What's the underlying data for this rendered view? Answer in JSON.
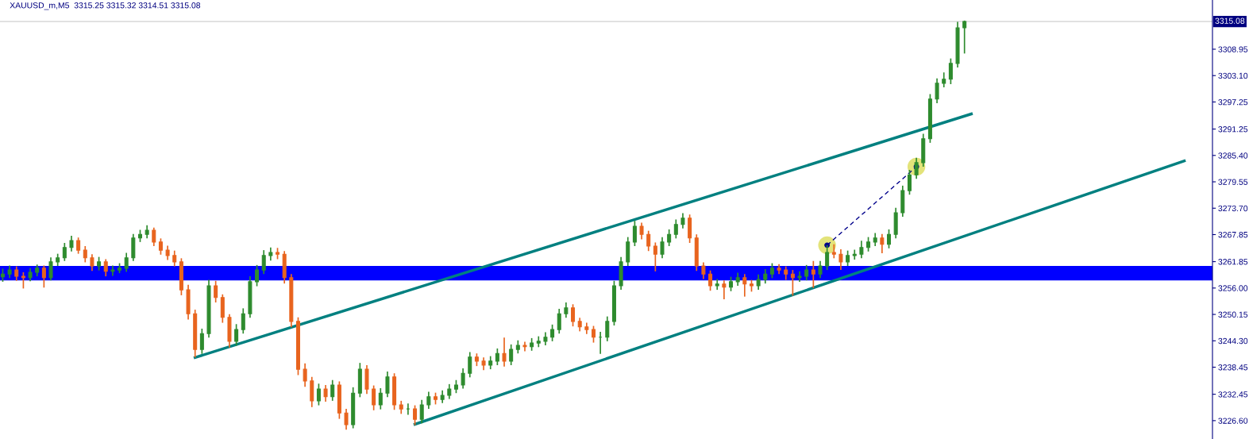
{
  "chart_data": {
    "type": "candlestick",
    "title": "XAUUSD_m,M5  3315.25 3315.32 3314.51 3315.08",
    "categories": [
      null,
      null,
      null,
      null,
      null,
      null,
      null,
      null,
      null,
      null,
      null,
      null,
      null,
      null,
      null,
      null,
      null,
      null,
      null,
      null,
      null,
      null,
      null,
      null,
      null,
      null,
      null,
      null,
      null,
      null,
      null,
      null,
      null,
      null,
      null,
      null,
      null,
      null,
      null,
      null,
      null,
      null,
      null,
      null,
      null,
      null,
      null,
      null,
      null,
      null,
      null,
      null,
      null,
      null,
      null,
      null,
      null,
      null,
      null,
      null,
      null,
      null,
      null,
      null,
      null,
      null,
      null,
      null,
      null,
      null,
      null,
      null,
      null,
      null,
      null,
      null,
      null,
      null,
      null,
      null,
      null,
      null,
      null,
      null,
      null,
      null,
      null,
      null,
      null,
      null,
      null,
      null,
      null,
      null,
      null,
      null,
      null,
      null,
      null,
      null,
      null,
      null,
      null,
      null,
      null,
      null,
      null,
      null,
      null,
      null,
      null,
      null,
      null,
      null,
      null,
      null,
      null,
      null,
      null,
      null,
      null,
      null,
      null,
      null,
      null,
      null,
      null,
      null,
      null,
      null,
      null,
      null,
      null,
      null,
      null,
      null,
      null,
      null,
      null,
      null,
      null,
      null,
      null,
      null,
      null,
      null,
      null,
      null,
      null,
      null,
      null,
      null,
      null,
      null,
      null,
      null,
      null,
      null,
      null,
      null,
      null,
      null,
      null,
      null,
      null,
      null,
      null,
      null,
      null,
      null,
      null,
      null,
      null,
      null,
      null,
      null,
      null
    ],
    "ohlc": [
      [
        3258.5,
        3260.3,
        3257.4,
        3259.1
      ],
      [
        3259.1,
        3261.0,
        3258.2,
        3260.0
      ],
      [
        3260.0,
        3260.8,
        3257.6,
        3258.6
      ],
      [
        3258.6,
        3259.5,
        3255.9,
        3258.3
      ],
      [
        3258.3,
        3260.4,
        3257.5,
        3259.5
      ],
      [
        3259.5,
        3261.2,
        3258.6,
        3260.4
      ],
      [
        3260.4,
        3261.0,
        3256.1,
        3258.3
      ],
      [
        3258.3,
        3262.8,
        3257.7,
        3261.8
      ],
      [
        3261.8,
        3263.6,
        3260.9,
        3262.7
      ],
      [
        3262.7,
        3266.0,
        3262.0,
        3265.0
      ],
      [
        3265.0,
        3267.6,
        3264.1,
        3266.5
      ],
      [
        3266.5,
        3267.2,
        3263.6,
        3264.4
      ],
      [
        3264.4,
        3265.3,
        3261.7,
        3262.7
      ],
      [
        3262.7,
        3263.5,
        3259.8,
        3260.9
      ],
      [
        3260.9,
        3262.9,
        3259.9,
        3261.8
      ],
      [
        3261.8,
        3262.4,
        3258.6,
        3259.7
      ],
      [
        3259.7,
        3261.0,
        3258.7,
        3260.0
      ],
      [
        3260.0,
        3261.5,
        3259.3,
        3260.4
      ],
      [
        3260.4,
        3263.8,
        3259.6,
        3262.7
      ],
      [
        3262.7,
        3268.0,
        3262.0,
        3267.1
      ],
      [
        3267.1,
        3268.9,
        3266.2,
        3267.9
      ],
      [
        3267.9,
        3269.9,
        3267.0,
        3268.8
      ],
      [
        3268.8,
        3269.4,
        3265.3,
        3266.2
      ],
      [
        3266.2,
        3267.0,
        3263.4,
        3264.4
      ],
      [
        3264.4,
        3265.4,
        3262.2,
        3263.2
      ],
      [
        3263.2,
        3264.3,
        3260.8,
        3261.8
      ],
      [
        3261.8,
        3262.6,
        3254.4,
        3255.6
      ],
      [
        3255.6,
        3256.7,
        3249.0,
        3250.3
      ],
      [
        3250.3,
        3251.2,
        3240.6,
        3242.4
      ],
      [
        3242.4,
        3247.0,
        3241.4,
        3245.9
      ],
      [
        3245.9,
        3257.8,
        3245.0,
        3256.5
      ],
      [
        3256.5,
        3257.6,
        3252.8,
        3253.9
      ],
      [
        3253.9,
        3254.6,
        3248.3,
        3249.5
      ],
      [
        3249.5,
        3250.2,
        3242.8,
        3244.2
      ],
      [
        3244.2,
        3248.0,
        3243.2,
        3246.8
      ],
      [
        3246.8,
        3251.5,
        3245.9,
        3250.3
      ],
      [
        3250.3,
        3258.6,
        3249.4,
        3257.4
      ],
      [
        3257.4,
        3261.1,
        3256.4,
        3260.0
      ],
      [
        3260.0,
        3264.4,
        3259.1,
        3263.2
      ],
      [
        3263.2,
        3265.0,
        3262.1,
        3263.9
      ],
      [
        3263.9,
        3264.9,
        3262.4,
        3263.5
      ],
      [
        3263.5,
        3264.2,
        3257.0,
        3258.3
      ],
      [
        3258.3,
        3259.1,
        3247.3,
        3248.6
      ],
      [
        3248.6,
        3249.5,
        3236.7,
        3238.0
      ],
      [
        3238.0,
        3239.3,
        3234.1,
        3235.4
      ],
      [
        3235.4,
        3236.3,
        3229.6,
        3231.0
      ],
      [
        3231.0,
        3234.8,
        3230.0,
        3233.6
      ],
      [
        3233.6,
        3234.5,
        3230.8,
        3231.9
      ],
      [
        3231.9,
        3235.6,
        3231.0,
        3234.5
      ],
      [
        3234.5,
        3235.3,
        3227.0,
        3228.3
      ],
      [
        3228.3,
        3229.2,
        3224.6,
        3225.7
      ],
      [
        3225.7,
        3234.0,
        3224.9,
        3232.7
      ],
      [
        3232.7,
        3239.4,
        3231.8,
        3238.0
      ],
      [
        3238.0,
        3238.9,
        3232.5,
        3233.6
      ],
      [
        3233.6,
        3234.4,
        3228.9,
        3230.1
      ],
      [
        3230.1,
        3233.8,
        3229.1,
        3232.7
      ],
      [
        3232.7,
        3237.5,
        3231.8,
        3236.3
      ],
      [
        3236.3,
        3237.1,
        3229.0,
        3230.1
      ],
      [
        3230.1,
        3231.0,
        3228.1,
        3229.2
      ],
      [
        3229.2,
        3230.4,
        3227.9,
        3229.2
      ],
      [
        3229.2,
        3230.0,
        3225.6,
        3226.9
      ],
      [
        3226.9,
        3231.2,
        3226.0,
        3230.1
      ],
      [
        3230.1,
        3233.0,
        3229.2,
        3231.9
      ],
      [
        3231.9,
        3232.8,
        3230.2,
        3231.3
      ],
      [
        3231.3,
        3233.3,
        3230.5,
        3232.2
      ],
      [
        3232.2,
        3234.7,
        3231.4,
        3233.6
      ],
      [
        3233.6,
        3235.6,
        3232.7,
        3234.5
      ],
      [
        3234.5,
        3238.2,
        3233.7,
        3237.1
      ],
      [
        3237.1,
        3241.8,
        3236.2,
        3240.7
      ],
      [
        3240.7,
        3241.5,
        3238.7,
        3239.8
      ],
      [
        3239.8,
        3240.6,
        3237.8,
        3238.9
      ],
      [
        3238.9,
        3240.9,
        3238.0,
        3239.8
      ],
      [
        3239.8,
        3242.6,
        3238.9,
        3241.5
      ],
      [
        3241.5,
        3245.0,
        3238.6,
        3239.8
      ],
      [
        3239.8,
        3243.5,
        3238.9,
        3242.4
      ],
      [
        3242.4,
        3244.4,
        3241.5,
        3243.3
      ],
      [
        3243.3,
        3244.1,
        3242.0,
        3243.0
      ],
      [
        3243.0,
        3244.9,
        3242.1,
        3243.8
      ],
      [
        3243.8,
        3245.3,
        3242.9,
        3244.2
      ],
      [
        3244.2,
        3246.2,
        3243.3,
        3245.1
      ],
      [
        3245.1,
        3247.9,
        3244.2,
        3246.8
      ],
      [
        3246.8,
        3251.4,
        3245.9,
        3250.3
      ],
      [
        3250.3,
        3252.8,
        3249.4,
        3251.6
      ],
      [
        3251.6,
        3252.4,
        3247.5,
        3248.6
      ],
      [
        3248.6,
        3249.4,
        3246.4,
        3247.4
      ],
      [
        3247.4,
        3248.3,
        3245.8,
        3246.8
      ],
      [
        3246.8,
        3247.6,
        3243.9,
        3245.1
      ],
      [
        3245.1,
        3246.3,
        3241.4,
        3245.1
      ],
      [
        3245.1,
        3249.7,
        3244.2,
        3248.6
      ],
      [
        3248.6,
        3257.6,
        3247.7,
        3256.5
      ],
      [
        3256.5,
        3262.9,
        3255.6,
        3261.8
      ],
      [
        3261.8,
        3267.3,
        3260.9,
        3266.2
      ],
      [
        3266.2,
        3270.9,
        3265.3,
        3269.7
      ],
      [
        3269.7,
        3270.5,
        3266.8,
        3267.9
      ],
      [
        3267.9,
        3268.7,
        3264.2,
        3265.3
      ],
      [
        3265.3,
        3266.1,
        3259.7,
        3263.5
      ],
      [
        3263.5,
        3267.3,
        3262.6,
        3266.2
      ],
      [
        3266.2,
        3269.0,
        3265.3,
        3267.9
      ],
      [
        3267.9,
        3271.2,
        3267.0,
        3270.1
      ],
      [
        3270.1,
        3272.6,
        3269.2,
        3271.5
      ],
      [
        3271.5,
        3272.3,
        3266.0,
        3267.1
      ],
      [
        3267.1,
        3267.9,
        3259.8,
        3260.9
      ],
      [
        3260.9,
        3261.7,
        3258.0,
        3259.1
      ],
      [
        3259.1,
        3259.9,
        3255.4,
        3256.5
      ],
      [
        3256.5,
        3258.0,
        3255.6,
        3256.9
      ],
      [
        3256.9,
        3257.7,
        3253.5,
        3256.2
      ],
      [
        3256.2,
        3258.5,
        3255.3,
        3257.4
      ],
      [
        3257.4,
        3259.4,
        3256.5,
        3258.3
      ],
      [
        3258.3,
        3259.1,
        3254.1,
        3256.9
      ],
      [
        3256.9,
        3257.8,
        3255.2,
        3256.5
      ],
      [
        3256.5,
        3259.0,
        3255.6,
        3257.9
      ],
      [
        3257.9,
        3260.2,
        3257.0,
        3259.1
      ],
      [
        3259.1,
        3261.5,
        3258.2,
        3260.4
      ],
      [
        3260.4,
        3261.3,
        3259.1,
        3260.0
      ],
      [
        3260.0,
        3260.8,
        3257.8,
        3259.1
      ],
      [
        3259.1,
        3260.0,
        3254.3,
        3258.3
      ],
      [
        3258.3,
        3259.7,
        3257.4,
        3258.6
      ],
      [
        3258.6,
        3261.1,
        3257.7,
        3260.0
      ],
      [
        3260.0,
        3262.0,
        3256.0,
        3259.1
      ],
      [
        3259.1,
        3262.0,
        3258.2,
        3260.9
      ],
      [
        3260.9,
        3265.5,
        3260.0,
        3263.9
      ],
      [
        3263.9,
        3265.7,
        3262.6,
        3263.5
      ],
      [
        3263.5,
        3264.6,
        3260.0,
        3261.8
      ],
      [
        3261.8,
        3264.3,
        3260.9,
        3263.2
      ],
      [
        3263.2,
        3264.5,
        3262.3,
        3263.5
      ],
      [
        3263.5,
        3266.5,
        3262.6,
        3265.0
      ],
      [
        3265.0,
        3267.3,
        3264.1,
        3266.2
      ],
      [
        3266.2,
        3268.2,
        3265.3,
        3267.1
      ],
      [
        3267.1,
        3268.0,
        3263.7,
        3265.7
      ],
      [
        3265.7,
        3269.0,
        3264.8,
        3267.9
      ],
      [
        3267.9,
        3273.8,
        3267.0,
        3272.7
      ],
      [
        3272.7,
        3278.7,
        3271.8,
        3277.6
      ],
      [
        3277.6,
        3282.2,
        3276.7,
        3281.1
      ],
      [
        3281.1,
        3284.9,
        3280.2,
        3283.8
      ],
      [
        3283.8,
        3290.2,
        3282.9,
        3289.1
      ],
      [
        3289.1,
        3299.0,
        3288.2,
        3297.9
      ],
      [
        3297.9,
        3302.5,
        3297.0,
        3301.4
      ],
      [
        3301.4,
        3303.8,
        3300.5,
        3302.3
      ],
      [
        3302.3,
        3306.9,
        3301.2,
        3305.8
      ],
      [
        3305.8,
        3315.0,
        3304.9,
        3313.7
      ],
      [
        3313.7,
        3315.3,
        3308.0,
        3315.08
      ],
      null,
      null,
      null,
      null,
      null,
      null,
      null,
      null,
      null,
      null,
      null,
      null,
      null,
      null,
      null,
      null,
      null,
      null,
      null,
      null,
      null,
      null,
      null,
      null,
      null,
      null,
      null,
      null,
      null,
      null,
      null,
      null,
      null,
      null,
      null,
      null
    ],
    "colors": [
      "#2e8b2e",
      "#2e8b2e",
      "#e8641e",
      "#e8641e",
      "#2e8b2e",
      "#2e8b2e",
      "#e8641e",
      "#2e8b2e",
      "#2e8b2e",
      "#2e8b2e",
      "#2e8b2e",
      "#e8641e",
      "#e8641e",
      "#e8641e",
      "#2e8b2e",
      "#e8641e",
      "#2e8b2e",
      "#2e8b2e",
      "#2e8b2e",
      "#2e8b2e",
      "#2e8b2e",
      "#2e8b2e",
      "#e8641e",
      "#e8641e",
      "#e8641e",
      "#e8641e",
      "#e8641e",
      "#e8641e",
      "#e8641e",
      "#2e8b2e",
      "#2e8b2e",
      "#e8641e",
      "#e8641e",
      "#e8641e",
      "#2e8b2e",
      "#2e8b2e",
      "#2e8b2e",
      "#2e8b2e",
      "#2e8b2e",
      "#2e8b2e",
      "#e8641e",
      "#e8641e",
      "#e8641e",
      "#e8641e",
      "#e8641e",
      "#e8641e",
      "#2e8b2e",
      "#e8641e",
      "#2e8b2e",
      "#e8641e",
      "#e8641e",
      "#2e8b2e",
      "#2e8b2e",
      "#e8641e",
      "#e8641e",
      "#2e8b2e",
      "#2e8b2e",
      "#e8641e",
      "#e8641e",
      "#2e8b2e",
      "#e8641e",
      "#2e8b2e",
      "#2e8b2e",
      "#e8641e",
      "#2e8b2e",
      "#2e8b2e",
      "#2e8b2e",
      "#2e8b2e",
      "#2e8b2e",
      "#e8641e",
      "#e8641e",
      "#2e8b2e",
      "#2e8b2e",
      "#e8641e",
      "#2e8b2e",
      "#2e8b2e",
      "#e8641e",
      "#2e8b2e",
      "#2e8b2e",
      "#2e8b2e",
      "#2e8b2e",
      "#2e8b2e",
      "#2e8b2e",
      "#e8641e",
      "#e8641e",
      "#e8641e",
      "#e8641e",
      "#2e8b2e",
      "#2e8b2e",
      "#2e8b2e",
      "#2e8b2e",
      "#2e8b2e",
      "#2e8b2e",
      "#e8641e",
      "#e8641e",
      "#e8641e",
      "#2e8b2e",
      "#2e8b2e",
      "#2e8b2e",
      "#2e8b2e",
      "#e8641e",
      "#e8641e",
      "#e8641e",
      "#e8641e",
      "#2e8b2e",
      "#e8641e",
      "#2e8b2e",
      "#2e8b2e",
      "#e8641e",
      "#e8641e",
      "#2e8b2e",
      "#2e8b2e",
      "#2e8b2e",
      "#e8641e",
      "#e8641e",
      "#e8641e",
      "#2e8b2e",
      "#2e8b2e",
      "#e8641e",
      "#2e8b2e",
      "#2e8b2e",
      "#e8641e",
      "#e8641e",
      "#2e8b2e",
      "#2e8b2e",
      "#2e8b2e",
      "#2e8b2e",
      "#2e8b2e",
      "#e8641e",
      "#2e8b2e",
      "#2e8b2e",
      "#2e8b2e",
      "#2e8b2e",
      "#2e8b2e",
      "#2e8b2e",
      "#2e8b2e",
      "#2e8b2e",
      "#2e8b2e",
      "#2e8b2e",
      "#2e8b2e",
      "#2e8b2e",
      null,
      null,
      null,
      null,
      null,
      null,
      null,
      null,
      null,
      null,
      null,
      null,
      null,
      null,
      null,
      null,
      null,
      null,
      null,
      null,
      null,
      null,
      null,
      null,
      null,
      null,
      null,
      null,
      null,
      null,
      null,
      null,
      null,
      null,
      null,
      null
    ],
    "series": [
      {
        "type": "line",
        "color": "#008080",
        "values": [
          null,
          null,
          null,
          null,
          null,
          null,
          null,
          null,
          null,
          null,
          null,
          null,
          null,
          null,
          null,
          null,
          null,
          null,
          null,
          null,
          null,
          null,
          null,
          null,
          null,
          null,
          null,
          null,
          3240.6,
          null,
          null,
          null,
          null,
          null,
          null,
          null,
          null,
          null,
          null,
          null,
          null,
          null,
          null,
          null,
          null,
          null,
          null,
          null,
          null,
          null,
          null,
          null,
          null,
          null,
          null,
          null,
          null,
          null,
          null,
          null,
          null,
          null,
          null,
          null,
          null,
          null,
          null,
          null,
          null,
          null,
          null,
          null,
          null,
          null,
          null,
          null,
          null,
          null,
          null,
          null,
          null,
          null,
          null,
          null,
          null,
          null,
          null,
          null,
          null,
          null,
          null,
          null,
          null,
          null,
          null,
          null,
          null,
          null,
          null,
          null,
          null,
          null,
          null,
          null,
          null,
          null,
          null,
          null,
          null,
          null,
          null,
          null,
          null,
          null,
          null,
          null,
          null,
          null,
          null,
          null,
          null,
          null,
          null,
          null,
          null,
          null,
          null,
          null,
          null,
          null,
          null,
          null,
          null,
          null,
          null,
          null,
          null,
          null,
          null,
          null,
          null,
          3294.6,
          null,
          null,
          null,
          null,
          null,
          null,
          null,
          null,
          null,
          null,
          null,
          null,
          null,
          null,
          null,
          null,
          null,
          null,
          null,
          null,
          null,
          null,
          null,
          null,
          null,
          null,
          null,
          null,
          null,
          null,
          null,
          null,
          null,
          null,
          null
        ]
      },
      {
        "type": "line",
        "color": "#008080",
        "values": [
          null,
          null,
          null,
          null,
          null,
          null,
          null,
          null,
          null,
          null,
          null,
          null,
          null,
          null,
          null,
          null,
          null,
          null,
          null,
          null,
          null,
          null,
          null,
          null,
          null,
          null,
          null,
          null,
          null,
          null,
          null,
          null,
          null,
          null,
          null,
          null,
          null,
          null,
          null,
          null,
          null,
          null,
          null,
          null,
          null,
          null,
          null,
          null,
          null,
          null,
          null,
          null,
          null,
          null,
          null,
          null,
          null,
          null,
          null,
          null,
          3225.8,
          null,
          null,
          null,
          null,
          null,
          null,
          null,
          null,
          null,
          null,
          null,
          null,
          null,
          null,
          null,
          null,
          null,
          null,
          null,
          null,
          null,
          null,
          null,
          null,
          null,
          null,
          null,
          null,
          null,
          null,
          null,
          null,
          null,
          null,
          null,
          null,
          null,
          null,
          null,
          null,
          null,
          null,
          null,
          null,
          null,
          null,
          null,
          null,
          null,
          null,
          null,
          null,
          null,
          null,
          null,
          null,
          null,
          null,
          null,
          null,
          null,
          null,
          null,
          null,
          null,
          null,
          null,
          null,
          null,
          null,
          null,
          null,
          null,
          null,
          null,
          null,
          null,
          null,
          null,
          null,
          null,
          null,
          null,
          null,
          null,
          null,
          null,
          null,
          null,
          null,
          null,
          null,
          null,
          null,
          null,
          null,
          null,
          null,
          null,
          null,
          null,
          null,
          null,
          null,
          null,
          null,
          null,
          null,
          null,
          null,
          null,
          3284.2,
          null,
          null,
          null,
          null
        ]
      },
      {
        "type": "line",
        "color": "#00008b",
        "line_style": "dashed",
        "marker": "circle",
        "values": [
          null,
          null,
          null,
          null,
          null,
          null,
          null,
          null,
          null,
          null,
          null,
          null,
          null,
          null,
          null,
          null,
          null,
          null,
          null,
          null,
          null,
          null,
          null,
          null,
          null,
          null,
          null,
          null,
          null,
          null,
          null,
          null,
          null,
          null,
          null,
          null,
          null,
          null,
          null,
          null,
          null,
          null,
          null,
          null,
          null,
          null,
          null,
          null,
          null,
          null,
          null,
          null,
          null,
          null,
          null,
          null,
          null,
          null,
          null,
          null,
          null,
          null,
          null,
          null,
          null,
          null,
          null,
          null,
          null,
          null,
          null,
          null,
          null,
          null,
          null,
          null,
          null,
          null,
          null,
          null,
          null,
          null,
          null,
          null,
          null,
          null,
          null,
          null,
          null,
          null,
          null,
          null,
          null,
          null,
          null,
          null,
          null,
          null,
          null,
          null,
          null,
          null,
          null,
          null,
          null,
          null,
          null,
          null,
          null,
          null,
          null,
          null,
          null,
          null,
          null,
          null,
          null,
          null,
          null,
          null,
          3265.5,
          null,
          null,
          null,
          null,
          null,
          null,
          null,
          null,
          null,
          null,
          null,
          null,
          3282.9,
          null,
          null,
          null,
          null,
          null,
          null,
          null,
          null,
          null,
          null,
          null,
          null,
          null,
          null,
          null,
          null,
          null,
          null,
          null,
          null,
          null,
          null,
          null,
          null,
          null,
          null,
          null,
          null,
          null,
          null,
          null,
          null,
          null,
          null,
          null,
          null,
          null,
          null,
          null,
          null,
          null,
          null,
          null
        ]
      }
    ],
    "bands": [
      {
        "axis": "y",
        "from": 3257.7,
        "to": 3260.9,
        "color": "#0000ff"
      }
    ],
    "ref_lines": [
      {
        "axis": "y",
        "value": 3315.08,
        "label": "3315.08",
        "color": "#d0d0d0"
      }
    ],
    "ylim": [
      3222.53,
      3319.86
    ],
    "yticks": [
      {
        "value": 3308.95,
        "label": "3308.95"
      },
      {
        "value": 3303.1,
        "label": "3303.10"
      },
      {
        "value": 3297.25,
        "label": "3297.25"
      },
      {
        "value": 3291.25,
        "label": "3291.25"
      },
      {
        "value": 3285.4,
        "label": "3285.40"
      },
      {
        "value": 3279.55,
        "label": "3279.55"
      },
      {
        "value": 3273.7,
        "label": "3273.70"
      },
      {
        "value": 3267.85,
        "label": "3267.85"
      },
      {
        "value": 3261.85,
        "label": "3261.85"
      },
      {
        "value": 3256.0,
        "label": "3256.00"
      },
      {
        "value": 3250.15,
        "label": "3250.15"
      },
      {
        "value": 3244.3,
        "label": "3244.30"
      },
      {
        "value": 3238.45,
        "label": "3238.45"
      },
      {
        "value": 3232.45,
        "label": "3232.45"
      },
      {
        "value": 3226.6,
        "label": "3226.60"
      }
    ],
    "tick_labels": "y",
    "grid": false,
    "legend": false
  }
}
